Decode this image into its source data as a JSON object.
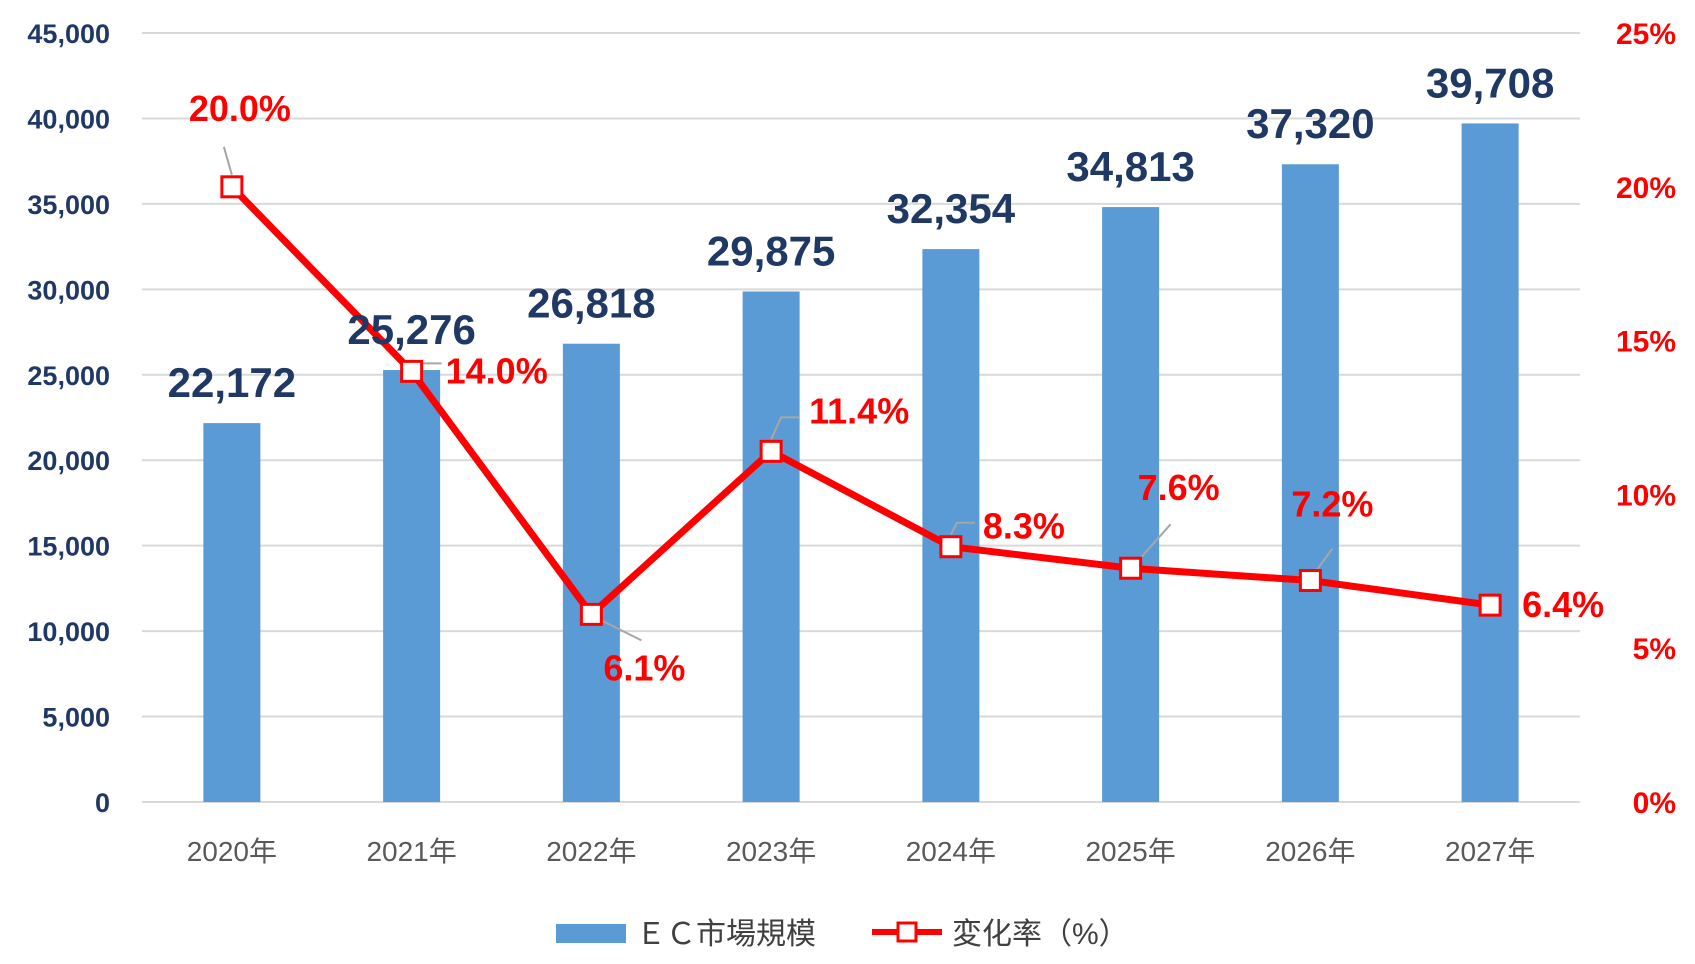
{
  "chart_data": {
    "type": "bar",
    "categories": [
      "2020年",
      "2021年",
      "2022年",
      "2023年",
      "2024年",
      "2025年",
      "2026年",
      "2027年"
    ],
    "series": [
      {
        "name": "ＥＣ市場規模",
        "type": "bar",
        "axis": "left",
        "color": "#5b9bd5",
        "values": [
          22172,
          25276,
          26818,
          29875,
          32354,
          34813,
          37320,
          39708
        ],
        "labels": [
          "22,172",
          "25,276",
          "26,818",
          "29,875",
          "32,354",
          "34,813",
          "37,320",
          "39,708"
        ]
      },
      {
        "name": "変化率（%）",
        "type": "line",
        "axis": "right",
        "color": "#ff0000",
        "values": [
          20.0,
          14.0,
          6.1,
          11.4,
          8.3,
          7.6,
          7.2,
          6.4
        ],
        "labels": [
          "20.0%",
          "14.0%",
          "6.1%",
          "11.4%",
          "8.3%",
          "7.6%",
          "7.2%",
          "6.4%"
        ]
      }
    ],
    "y_left": {
      "range": [
        0,
        45000
      ],
      "ticks": [
        0,
        5000,
        10000,
        15000,
        20000,
        25000,
        30000,
        35000,
        40000,
        45000
      ],
      "tick_labels": [
        "0",
        "5,000",
        "10,000",
        "15,000",
        "20,000",
        "25,000",
        "30,000",
        "35,000",
        "40,000",
        "45,000"
      ]
    },
    "y_right": {
      "range": [
        0,
        25
      ],
      "ticks": [
        0,
        5,
        10,
        15,
        20,
        25
      ],
      "tick_labels": [
        "0%",
        "5%",
        "10%",
        "15%",
        "20%",
        "25%"
      ]
    },
    "grid": true,
    "legend_position": "bottom"
  }
}
